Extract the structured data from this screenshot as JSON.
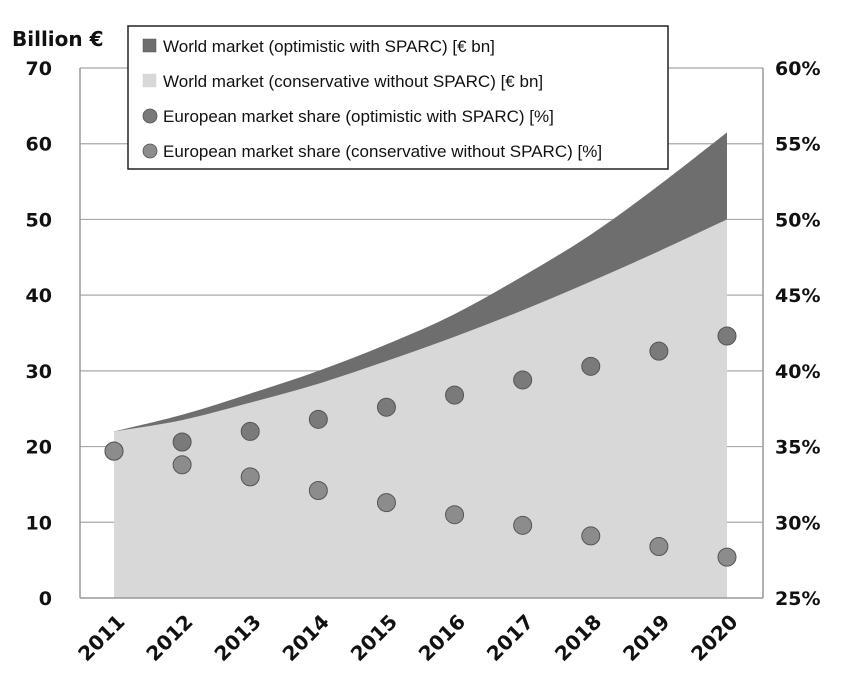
{
  "chart_data": {
    "type": "area",
    "left_axis_label": "Billion €",
    "x": [
      "2011",
      "2012",
      "2013",
      "2014",
      "2015",
      "2016",
      "2017",
      "2018",
      "2019",
      "2020"
    ],
    "ylim": [
      0,
      70
    ],
    "y_ticks": [
      "0",
      "10",
      "20",
      "30",
      "40",
      "50",
      "60",
      "70"
    ],
    "y2lim": [
      25,
      60
    ],
    "y2_ticks": [
      "25%",
      "30%",
      "35%",
      "40%",
      "45%",
      "50%",
      "55%",
      "60%"
    ],
    "grid": true,
    "legend_position": "top",
    "series": [
      {
        "name": "World market (optimistic with SPARC) [€ bn]",
        "kind": "area",
        "axis": "left",
        "color": "#6e6e6e",
        "values": [
          22.0,
          24.2,
          27.0,
          30.0,
          33.5,
          37.5,
          42.5,
          48.0,
          54.5,
          61.5
        ]
      },
      {
        "name": "World market (conservative without SPARC) [€ bn]",
        "kind": "area",
        "axis": "left",
        "color": "#d8d8d8",
        "values": [
          22.0,
          23.5,
          25.8,
          28.3,
          31.3,
          34.5,
          38.0,
          41.8,
          45.8,
          50.0
        ]
      },
      {
        "name": "European market share (optimistic with SPARC) [%]",
        "kind": "scatter",
        "axis": "right",
        "color": "#7a7a7a",
        "values": [
          34.7,
          35.3,
          36.0,
          36.8,
          37.6,
          38.4,
          39.4,
          40.3,
          41.3,
          42.3
        ]
      },
      {
        "name": "European market share (conservative without SPARC) [%]",
        "kind": "scatter",
        "axis": "right",
        "color": "#8c8c8c",
        "values": [
          34.7,
          33.8,
          33.0,
          32.1,
          31.3,
          30.5,
          29.8,
          29.1,
          28.4,
          27.7
        ]
      }
    ]
  }
}
